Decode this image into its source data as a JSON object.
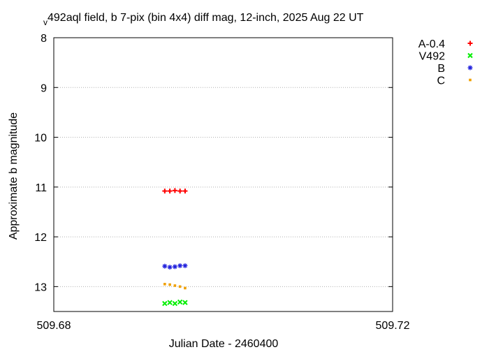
{
  "chart_data": {
    "type": "scatter",
    "title": "v492aql field, b 7-pix (bin 4x4) diff mag, 12-inch, 2025 Aug 22 UT",
    "xlabel": "Julian Date - 2460400",
    "ylabel": "Approximate b magnitude",
    "xlim": [
      509.68,
      509.72
    ],
    "ylim": [
      8,
      13.5
    ],
    "y_inverted": true,
    "x_ticks": [
      "509.68",
      "509.72"
    ],
    "y_ticks": [
      "8",
      "9",
      "10",
      "11",
      "12",
      "13"
    ],
    "grid": "horizontal dotted",
    "legend_position": "outside-right",
    "series": [
      {
        "name": "A-0.4",
        "marker": "plus",
        "color": "#ff0000",
        "x": [
          509.6931,
          509.6937,
          509.6943,
          509.6949,
          509.6955
        ],
        "y": [
          11.08,
          11.08,
          11.07,
          11.08,
          11.08
        ]
      },
      {
        "name": "V492",
        "marker": "cross",
        "color": "#00ee00",
        "x": [
          509.6931,
          509.6937,
          509.6943,
          509.6949,
          509.6955
        ],
        "y": [
          13.34,
          13.32,
          13.34,
          13.31,
          13.32
        ]
      },
      {
        "name": "B",
        "marker": "star",
        "color": "#2222dd",
        "x": [
          509.6931,
          509.6937,
          509.6943,
          509.6949,
          509.6955
        ],
        "y": [
          12.59,
          12.61,
          12.6,
          12.58,
          12.58
        ]
      },
      {
        "name": "C",
        "marker": "square",
        "color": "#f0a000",
        "x": [
          509.6931,
          509.6937,
          509.6943,
          509.6949,
          509.6955
        ],
        "y": [
          12.95,
          12.96,
          12.98,
          13.0,
          13.03
        ]
      }
    ]
  }
}
